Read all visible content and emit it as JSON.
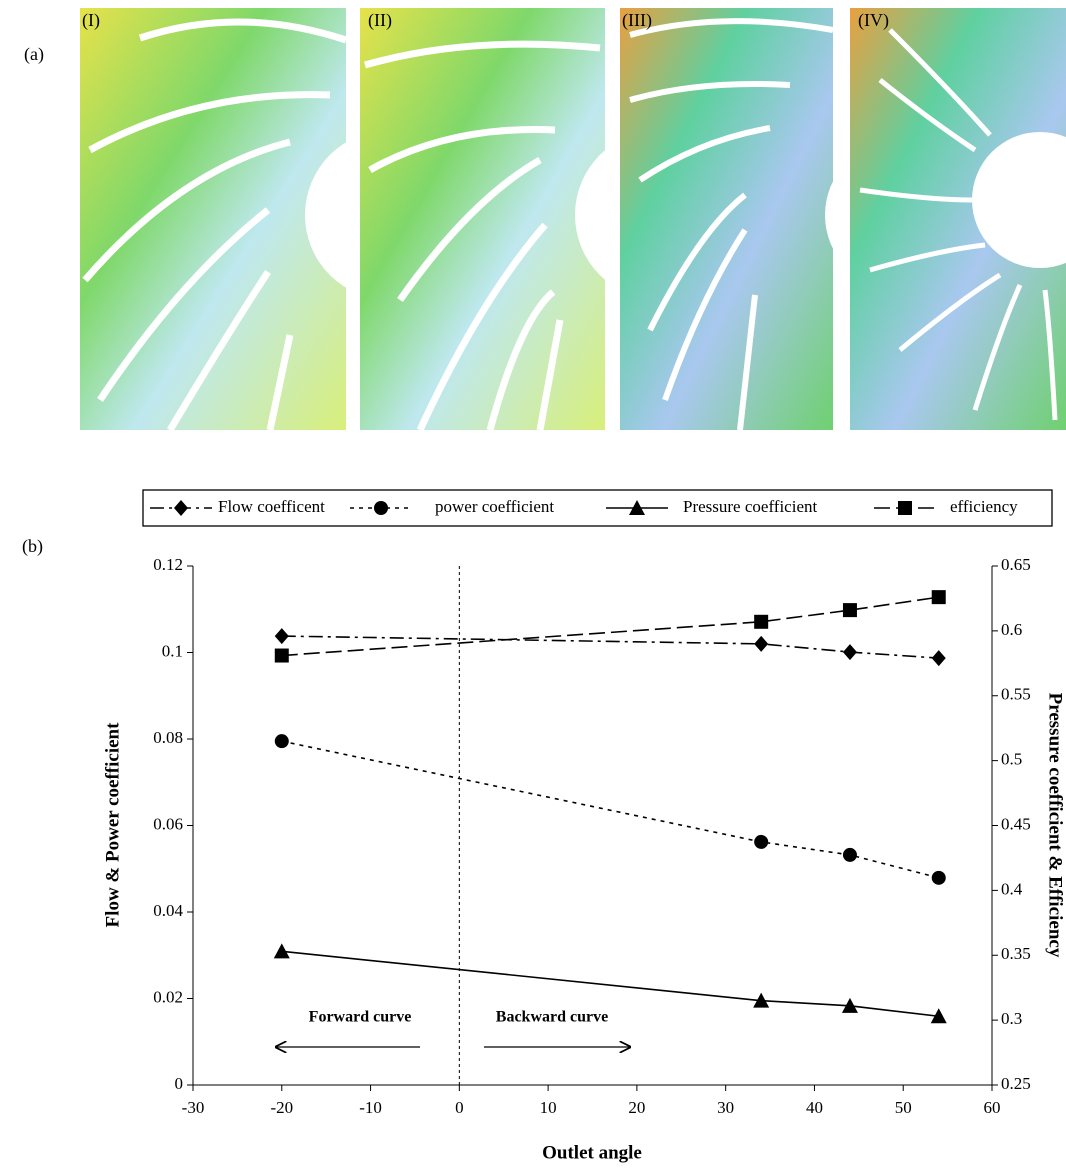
{
  "figure": {
    "label_a": "(a)",
    "label_b": "(b)",
    "panels": [
      "(I)",
      "(II)",
      "(III)",
      "(IV)"
    ]
  },
  "chart_data": {
    "type": "line",
    "x_label": "Outlet angle",
    "y_label": "Flow & Power coefficient",
    "y2_label": "Pressure coefficient & Efficiency",
    "x": [
      -20,
      34,
      44,
      54
    ],
    "series": [
      {
        "name": "Flow coefficent",
        "color": "#000000",
        "marker": "diamond",
        "dash": "14 5 3 5",
        "values": [
          0.1038,
          0.102,
          0.1001,
          0.0987
        ]
      },
      {
        "name": "power coefficient",
        "color": "#000000",
        "marker": "circle",
        "dash": "4 5",
        "values": [
          0.0795,
          0.0562,
          0.0532,
          0.0479
        ]
      },
      {
        "name": "Pressure coefficient",
        "color": "#000000",
        "marker": "triangle",
        "dash": "none",
        "axis": "y2",
        "values": [
          0.353,
          0.315,
          0.311,
          0.303
        ]
      },
      {
        "name": "efficiency",
        "color": "#000000",
        "marker": "square",
        "dash": "16 6",
        "axis": "y2",
        "values": [
          0.581,
          0.607,
          0.616,
          0.626
        ]
      }
    ],
    "xlim": [
      -30,
      60
    ],
    "xticks": [
      -30,
      -20,
      -10,
      0,
      10,
      20,
      30,
      40,
      50,
      60
    ],
    "ylim": [
      0,
      0.12
    ],
    "yticks": [
      0,
      0.02,
      0.04,
      0.06,
      0.08,
      0.1,
      0.12
    ],
    "y2lim": [
      0.25,
      0.65
    ],
    "y2ticks": [
      0.25,
      0.3,
      0.35,
      0.4,
      0.45,
      0.5,
      0.55,
      0.6,
      0.65
    ],
    "reference_x": 0,
    "annotations": [
      "Forward curve",
      "Backward curve"
    ],
    "grid": false
  }
}
